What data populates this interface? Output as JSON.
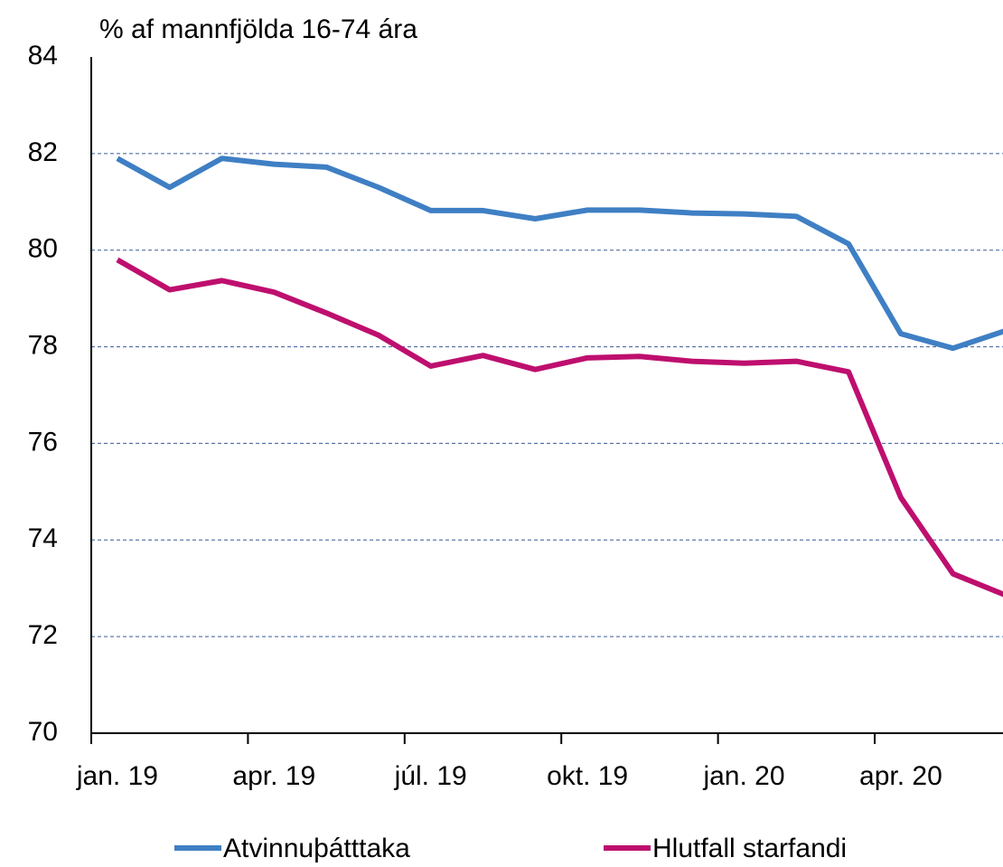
{
  "chart_data": {
    "type": "line",
    "y_axis_label": "% af mannfjölda 16-74 ára",
    "categories": [
      "jan. 19",
      null,
      null,
      "apr. 19",
      null,
      null,
      "júl. 19",
      null,
      null,
      "okt. 19",
      null,
      null,
      "jan. 20",
      null,
      null,
      "apr. 20",
      null,
      null
    ],
    "series": [
      {
        "name": "Atvinnuþátttaka",
        "color": "#3f7fc4",
        "values": [
          81.9,
          81.3,
          81.9,
          81.78,
          81.72,
          81.3,
          80.82,
          80.82,
          80.65,
          80.83,
          80.83,
          80.77,
          80.75,
          80.7,
          80.13,
          78.27,
          77.97,
          78.33
        ]
      },
      {
        "name": "Hlutfall starfandi",
        "color": "#be0f6e",
        "values": [
          79.8,
          79.18,
          79.37,
          79.13,
          78.7,
          78.24,
          77.6,
          77.82,
          77.53,
          77.77,
          77.8,
          77.7,
          77.66,
          77.7,
          77.48,
          74.88,
          73.3,
          72.86
        ]
      }
    ],
    "ylim": [
      70,
      84
    ],
    "yticks": [
      70,
      72,
      74,
      76,
      78,
      80,
      82,
      84
    ],
    "grid": true
  }
}
